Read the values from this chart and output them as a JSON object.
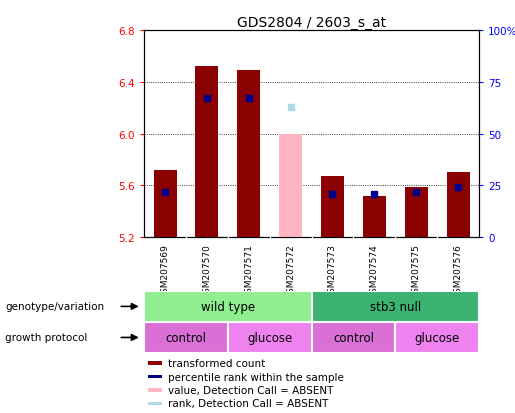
{
  "title": "GDS2804 / 2603_s_at",
  "samples": [
    "GSM207569",
    "GSM207570",
    "GSM207571",
    "GSM207572",
    "GSM207573",
    "GSM207574",
    "GSM207575",
    "GSM207576"
  ],
  "bar_bottom": 5.2,
  "ylim": [
    5.2,
    6.8
  ],
  "yticks_left": [
    5.2,
    5.6,
    6.0,
    6.4,
    6.8
  ],
  "yticks_right": [
    0,
    25,
    50,
    75,
    100
  ],
  "transformed_count": [
    5.72,
    6.52,
    6.49,
    null,
    5.67,
    5.52,
    5.59,
    5.7
  ],
  "percentile_rank": [
    22,
    67,
    67,
    null,
    21,
    21,
    22,
    24
  ],
  "absent_value": [
    null,
    null,
    null,
    6.0,
    null,
    null,
    null,
    null
  ],
  "absent_rank": [
    null,
    null,
    null,
    63,
    null,
    null,
    null,
    null
  ],
  "bar_color_present": "#8b0000",
  "bar_color_absent": "#ffb6c1",
  "dot_color_present": "#00008b",
  "dot_color_absent": "#add8e6",
  "bg_color": "#c8c8c8",
  "geno_color_wt": "#90ee90",
  "geno_color_stb3": "#3cb371",
  "proto_color_control": "#da70d6",
  "proto_color_glucose": "#ee82ee",
  "legend_items": [
    {
      "color": "#8b0000",
      "label": "transformed count"
    },
    {
      "color": "#00008b",
      "label": "percentile rank within the sample"
    },
    {
      "color": "#ffb6c1",
      "label": "value, Detection Call = ABSENT"
    },
    {
      "color": "#add8e6",
      "label": "rank, Detection Call = ABSENT"
    }
  ]
}
